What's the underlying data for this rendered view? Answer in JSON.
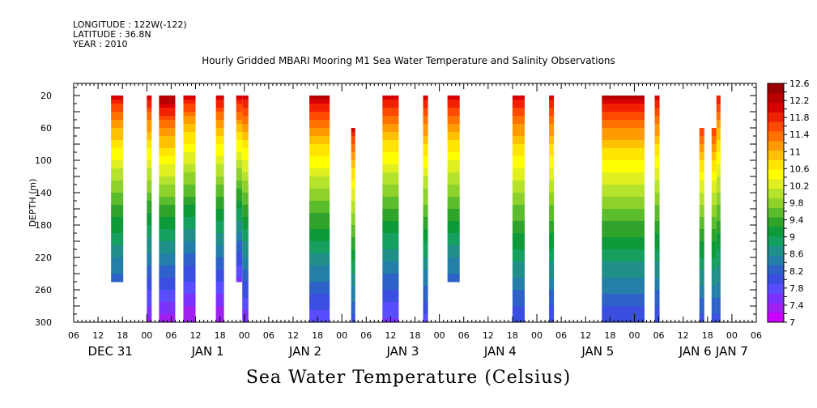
{
  "header": {
    "longitude": "LONGITUDE : 122W(-122)",
    "latitude": "LATITUDE : 36.8N",
    "year": "YEAR : 2010"
  },
  "chart_data": {
    "type": "heatmap",
    "title": "Hourly Gridded MBARI Mooring M1 Sea Water Temperature and Salinity Observations",
    "xlabel": "Sea Water Temperature (Celsius)",
    "ylabel": "DEPTH (m)",
    "x_unit": "hours from DEC 31 00:00, 2010",
    "xlim": [
      6,
      174
    ],
    "ylim": [
      300,
      5
    ],
    "y_ticks": [
      20,
      60,
      100,
      140,
      180,
      220,
      260,
      300
    ],
    "x_hour_ticks": [
      {
        "h": 6,
        "label": "06"
      },
      {
        "h": 12,
        "label": "12"
      },
      {
        "h": 18,
        "label": "18"
      },
      {
        "h": 24,
        "label": "00"
      },
      {
        "h": 30,
        "label": "06"
      },
      {
        "h": 36,
        "label": "12"
      },
      {
        "h": 42,
        "label": "18"
      },
      {
        "h": 48,
        "label": "00"
      },
      {
        "h": 54,
        "label": "06"
      },
      {
        "h": 60,
        "label": "12"
      },
      {
        "h": 66,
        "label": "18"
      },
      {
        "h": 72,
        "label": "00"
      },
      {
        "h": 78,
        "label": "06"
      },
      {
        "h": 84,
        "label": "12"
      },
      {
        "h": 90,
        "label": "18"
      },
      {
        "h": 96,
        "label": "00"
      },
      {
        "h": 102,
        "label": "06"
      },
      {
        "h": 108,
        "label": "12"
      },
      {
        "h": 114,
        "label": "18"
      },
      {
        "h": 120,
        "label": "00"
      },
      {
        "h": 126,
        "label": "06"
      },
      {
        "h": 132,
        "label": "12"
      },
      {
        "h": 138,
        "label": "18"
      },
      {
        "h": 144,
        "label": "00"
      },
      {
        "h": 150,
        "label": "06"
      },
      {
        "h": 156,
        "label": "12"
      },
      {
        "h": 162,
        "label": "18"
      },
      {
        "h": 168,
        "label": "00"
      },
      {
        "h": 174,
        "label": "06"
      }
    ],
    "x_date_labels": [
      {
        "h": 15,
        "label": "DEC 31"
      },
      {
        "h": 39,
        "label": "JAN  1"
      },
      {
        "h": 63,
        "label": "JAN  2"
      },
      {
        "h": 87,
        "label": "JAN  3"
      },
      {
        "h": 111,
        "label": "JAN  4"
      },
      {
        "h": 135,
        "label": "JAN  5"
      },
      {
        "h": 159,
        "label": "JAN  6"
      },
      {
        "h": 168,
        "label": "JAN  7"
      }
    ],
    "colorbar": {
      "levels": [
        7,
        7.2,
        7.4,
        7.6,
        7.8,
        8,
        8.2,
        8.4,
        8.6,
        8.8,
        9,
        9.2,
        9.4,
        9.6,
        9.8,
        10,
        10.2,
        10.4,
        10.6,
        10.8,
        11,
        11.2,
        11.4,
        11.6,
        11.8,
        12,
        12.2,
        12.4,
        12.6
      ],
      "labels": [
        "7",
        "7.4",
        "7.8",
        "8.2",
        "8.6",
        "9",
        "9.4",
        "9.8",
        "10.2",
        "10.6",
        "11",
        "11.4",
        "11.8",
        "12.2",
        "12.6"
      ],
      "colors": [
        "#cc00ff",
        "#a020f0",
        "#7b32ff",
        "#5a4cff",
        "#3a4fe0",
        "#2e62c8",
        "#237fa8",
        "#1f8f88",
        "#15a060",
        "#0f9a3a",
        "#2fa32a",
        "#5bbd2c",
        "#8ed12a",
        "#b5e22a",
        "#dfef20",
        "#ffff00",
        "#ffe500",
        "#ffc000",
        "#ff9a00",
        "#ff7200",
        "#ff4800",
        "#f02000",
        "#d80000",
        "#b80000",
        "#990000"
      ]
    },
    "columns": [
      {
        "x0": 15.2,
        "x1": 18.2,
        "top": 20,
        "bottom": 250,
        "temp_top": 12.1,
        "temp_bottom": 8.2
      },
      {
        "x0": 24.0,
        "x1": 25.2,
        "top": 20,
        "bottom": 300,
        "temp_top": 12.2,
        "temp_bottom": 7.4
      },
      {
        "x0": 27.0,
        "x1": 31.0,
        "top": 20,
        "bottom": 300,
        "temp_top": 12.5,
        "temp_bottom": 7.3
      },
      {
        "x0": 33.0,
        "x1": 36.0,
        "top": 20,
        "bottom": 300,
        "temp_top": 12.1,
        "temp_bottom": 7.2
      },
      {
        "x0": 41.0,
        "x1": 43.0,
        "top": 20,
        "bottom": 300,
        "temp_top": 12.2,
        "temp_bottom": 7.2
      },
      {
        "x0": 46.0,
        "x1": 47.5,
        "top": 20,
        "bottom": 250,
        "temp_top": 12.2,
        "temp_bottom": 7.6
      },
      {
        "x0": 47.5,
        "x1": 49.0,
        "top": 20,
        "bottom": 300,
        "temp_top": 12.2,
        "temp_bottom": 7.5
      },
      {
        "x0": 64.0,
        "x1": 69.0,
        "top": 20,
        "bottom": 300,
        "temp_top": 12.3,
        "temp_bottom": 7.7
      },
      {
        "x0": 74.3,
        "x1": 75.3,
        "top": 60,
        "bottom": 300,
        "temp_top": 12.1,
        "temp_bottom": 8.0
      },
      {
        "x0": 82.0,
        "x1": 86.0,
        "top": 20,
        "bottom": 300,
        "temp_top": 12.2,
        "temp_bottom": 7.6
      },
      {
        "x0": 92.0,
        "x1": 93.2,
        "top": 20,
        "bottom": 300,
        "temp_top": 12.2,
        "temp_bottom": 7.8
      },
      {
        "x0": 98.0,
        "x1": 101.0,
        "top": 20,
        "bottom": 250,
        "temp_top": 12.2,
        "temp_bottom": 8.2
      },
      {
        "x0": 114.0,
        "x1": 117.0,
        "top": 20,
        "bottom": 300,
        "temp_top": 12.2,
        "temp_bottom": 7.9
      },
      {
        "x0": 123.0,
        "x1": 124.2,
        "top": 20,
        "bottom": 300,
        "temp_top": 12.2,
        "temp_bottom": 7.9
      },
      {
        "x0": 136.0,
        "x1": 146.5,
        "top": 20,
        "bottom": 300,
        "temp_top": 12.3,
        "temp_bottom": 7.9
      },
      {
        "x0": 149.0,
        "x1": 150.2,
        "top": 20,
        "bottom": 300,
        "temp_top": 12.2,
        "temp_bottom": 7.9
      },
      {
        "x0": 160.0,
        "x1": 161.2,
        "top": 60,
        "bottom": 300,
        "temp_top": 11.8,
        "temp_bottom": 8.0
      },
      {
        "x0": 163.0,
        "x1": 164.2,
        "top": 60,
        "bottom": 300,
        "temp_top": 11.8,
        "temp_bottom": 8.0
      },
      {
        "x0": 164.2,
        "x1": 165.2,
        "top": 20,
        "bottom": 300,
        "temp_top": 12.0,
        "temp_bottom": 8.0
      }
    ],
    "grid": false,
    "legend": "right colorbar"
  }
}
